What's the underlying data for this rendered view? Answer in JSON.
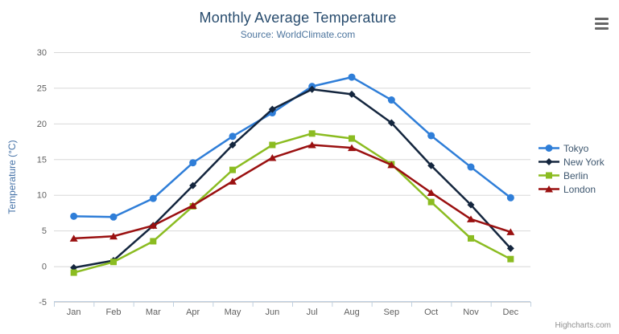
{
  "header": {
    "title": "Monthly Average Temperature",
    "subtitle": "Source: WorldClimate.com"
  },
  "toolbar": {
    "export_menu_icon": "hamburger-icon"
  },
  "credits": {
    "label": "Highcharts.com"
  },
  "chart_data": {
    "type": "line",
    "title": "Monthly Average Temperature",
    "subtitle": "Source: WorldClimate.com",
    "categories": [
      "Jan",
      "Feb",
      "Mar",
      "Apr",
      "May",
      "Jun",
      "Jul",
      "Aug",
      "Sep",
      "Oct",
      "Nov",
      "Dec"
    ],
    "series": [
      {
        "name": "Tokyo",
        "color": "#2f7ed8",
        "marker": "circle",
        "values": [
          7.0,
          6.9,
          9.5,
          14.5,
          18.2,
          21.5,
          25.2,
          26.5,
          23.3,
          18.3,
          13.9,
          9.6
        ]
      },
      {
        "name": "New York",
        "color": "#14263e",
        "marker": "diamond",
        "values": [
          -0.2,
          0.8,
          5.7,
          11.3,
          17.0,
          22.0,
          24.8,
          24.1,
          20.1,
          14.1,
          8.6,
          2.5
        ]
      },
      {
        "name": "Berlin",
        "color": "#8bbc21",
        "marker": "square",
        "values": [
          -0.9,
          0.6,
          3.5,
          8.4,
          13.5,
          17.0,
          18.6,
          17.9,
          14.3,
          9.0,
          3.9,
          1.0
        ]
      },
      {
        "name": "London",
        "color": "#9a1010",
        "marker": "triangle",
        "values": [
          3.9,
          4.2,
          5.7,
          8.5,
          11.9,
          15.2,
          17.0,
          16.6,
          14.2,
          10.3,
          6.6,
          4.8
        ]
      }
    ],
    "xlabel": "",
    "ylabel": "Temperature (°C)",
    "ylim": [
      -5,
      30
    ],
    "ytick_interval": 5,
    "yticks": [
      -5,
      0,
      5,
      10,
      15,
      20,
      25,
      30
    ],
    "grid": true,
    "legend_position": "right"
  },
  "style": {
    "gridline_color": "#d8d8d8",
    "axis_line_color": "#c0d0e0",
    "tick_label_color": "#606060",
    "axis_title_color": "#4572a7",
    "legend_text_color": "#3e576f",
    "title_color": "#274b6d",
    "subtitle_color": "#4d759e"
  }
}
